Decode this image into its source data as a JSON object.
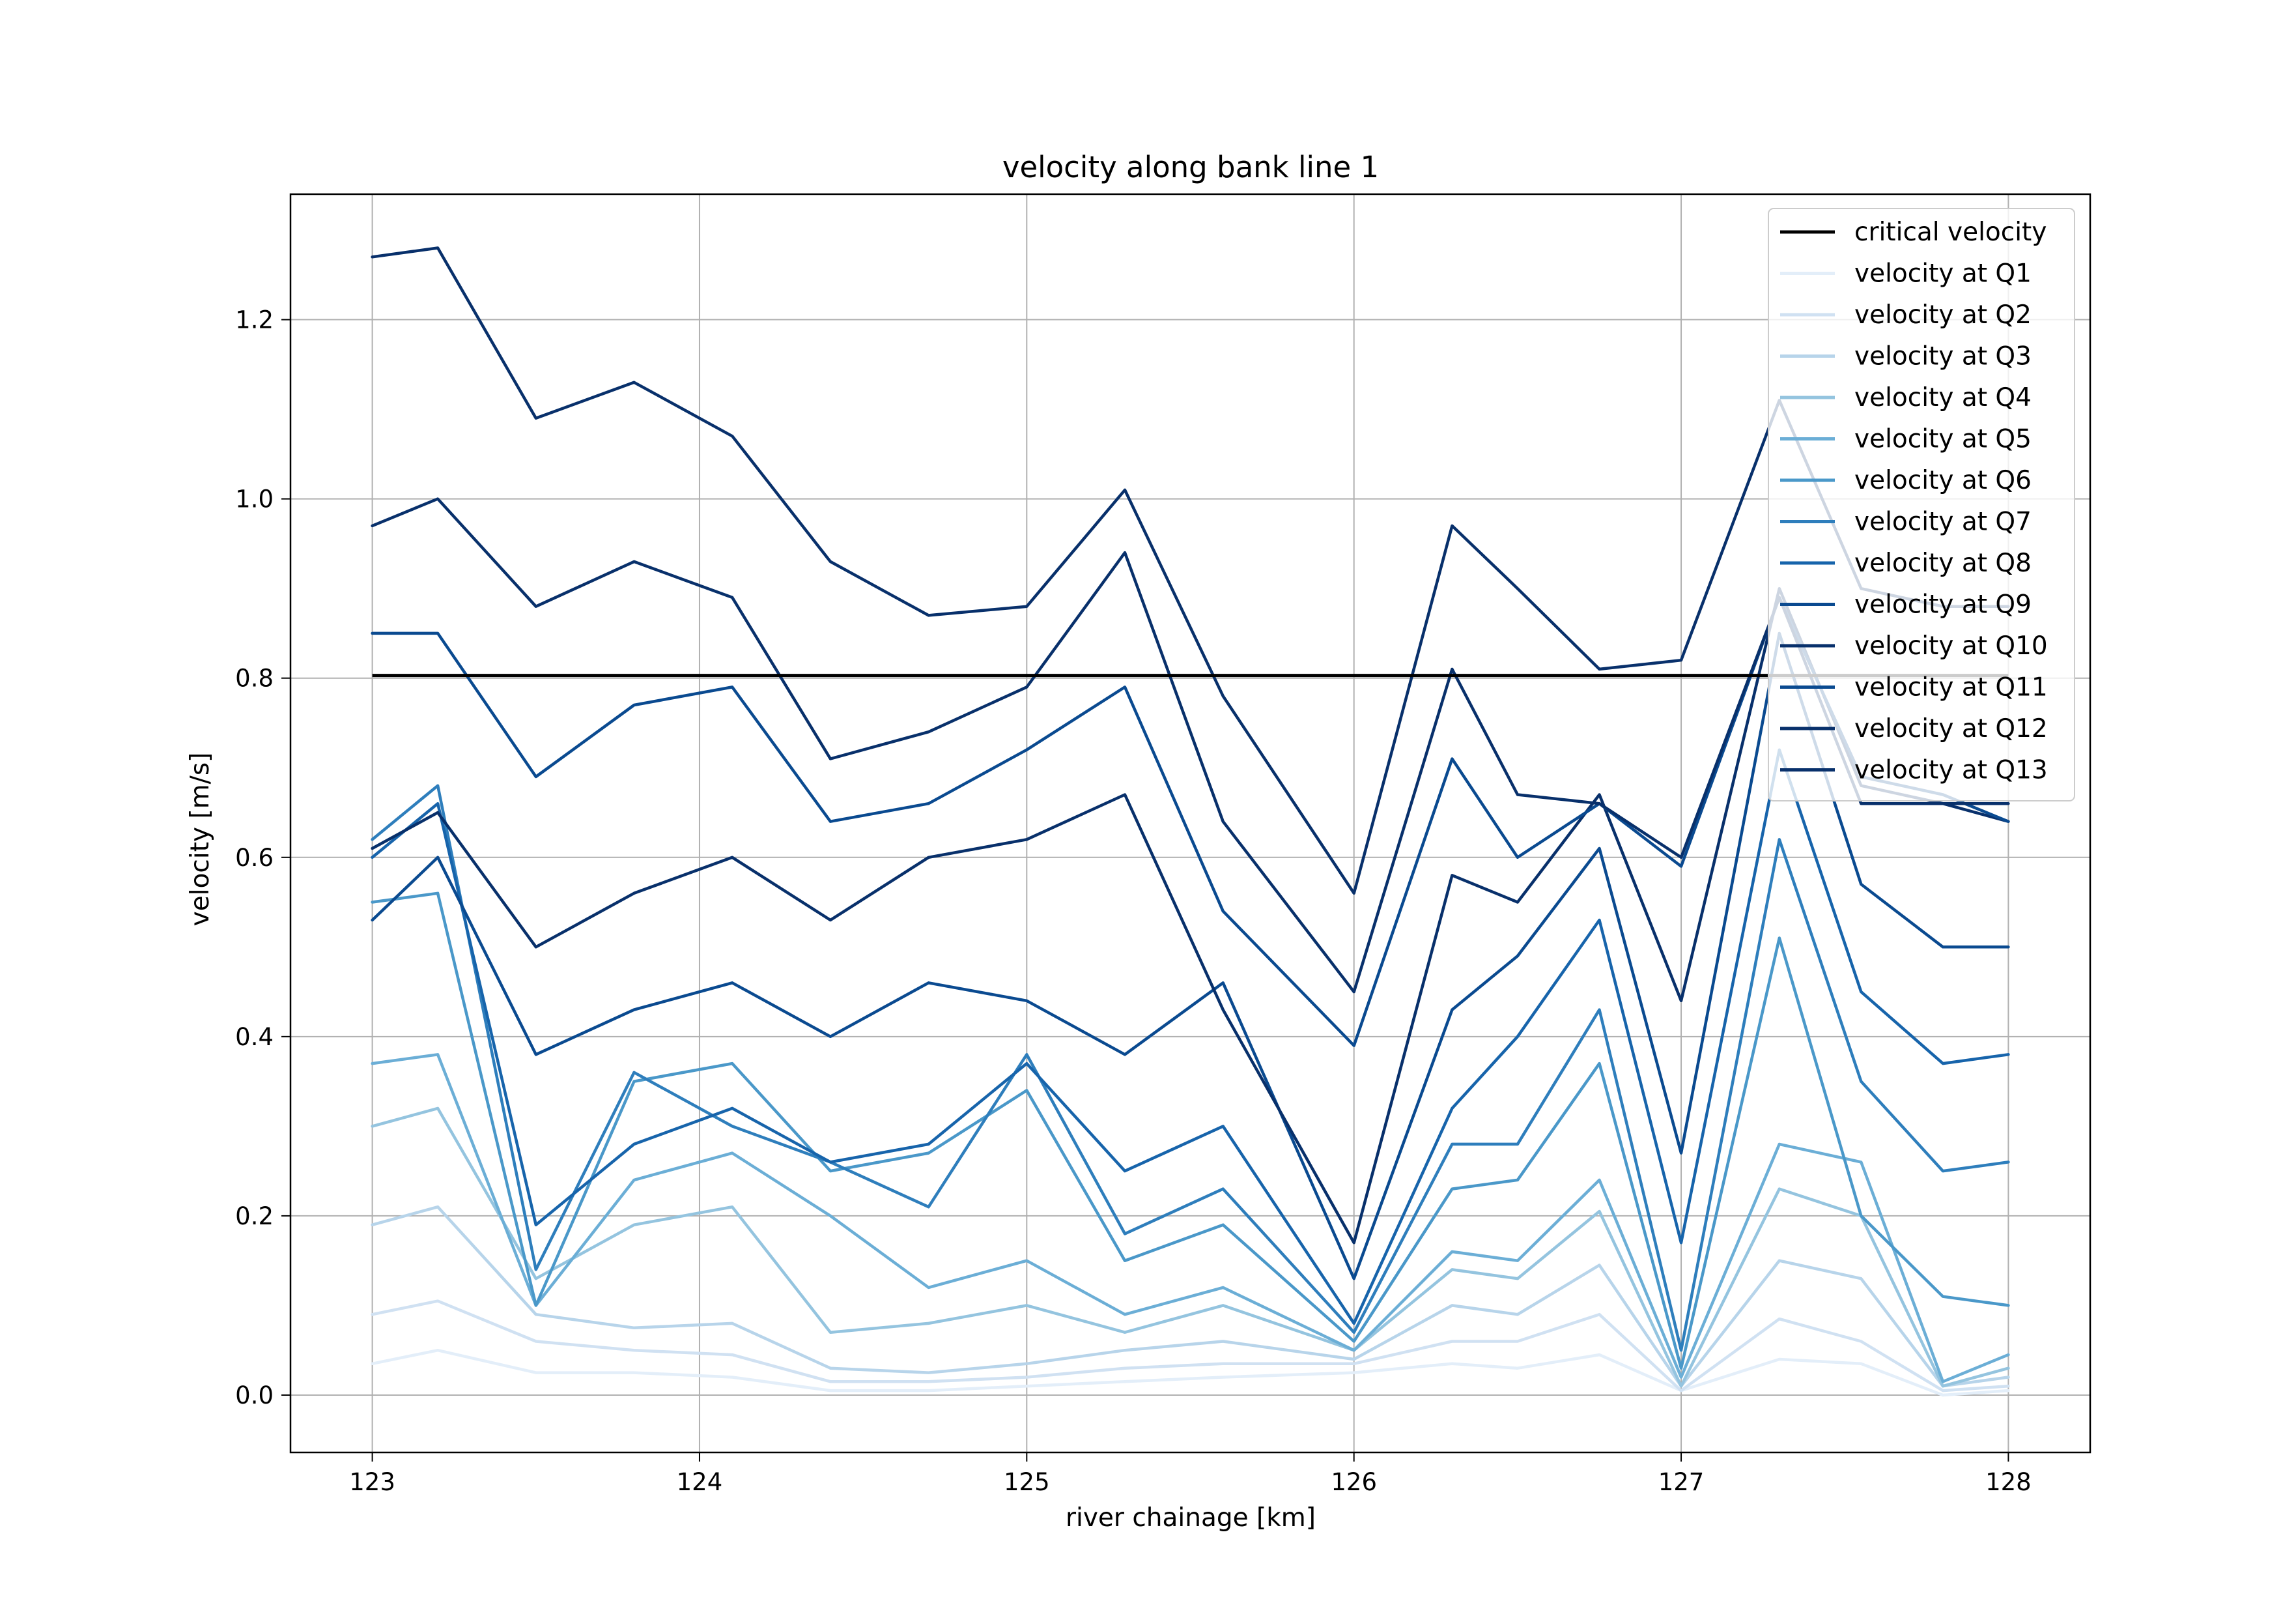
{
  "chart_data": {
    "type": "line",
    "title": "velocity along bank line 1",
    "xlabel": "river chainage [km]",
    "ylabel": "velocity [m/s]",
    "xlim": [
      122.75,
      128.25
    ],
    "ylim": [
      -0.064,
      1.34
    ],
    "xticks": [
      123,
      124,
      125,
      126,
      127,
      128
    ],
    "xtick_labels": [
      "123",
      "124",
      "125",
      "126",
      "127",
      "128"
    ],
    "yticks": [
      0.0,
      0.2,
      0.4,
      0.6,
      0.8,
      1.0,
      1.2
    ],
    "ytick_labels": [
      "0.0",
      "0.2",
      "0.4",
      "0.6",
      "0.8",
      "1.0",
      "1.2"
    ],
    "grid": true,
    "legend_position": "top-right",
    "critical_velocity": {
      "name": "critical velocity",
      "color": "#000000",
      "x": [
        123,
        128
      ],
      "y": [
        0.803,
        0.803
      ]
    },
    "series": [
      {
        "name": "velocity at Q1",
        "color": "#e3eef9",
        "x": [
          123,
          123.2,
          123.5,
          123.8,
          124.1,
          124.4,
          124.7,
          125.0,
          125.3,
          125.6,
          126.0,
          126.3,
          126.5,
          126.75,
          127.0,
          127.3,
          127.55,
          127.8,
          128
        ],
        "y": [
          0.035,
          0.05,
          0.025,
          0.025,
          0.02,
          0.005,
          0.005,
          0.01,
          0.015,
          0.02,
          0.025,
          0.035,
          0.03,
          0.045,
          0.005,
          0.04,
          0.035,
          0.0,
          0.005
        ]
      },
      {
        "name": "velocity at Q2",
        "color": "#d0e1f2",
        "x": [
          123,
          123.2,
          123.5,
          123.8,
          124.1,
          124.4,
          124.7,
          125.0,
          125.3,
          125.6,
          126.0,
          126.3,
          126.5,
          126.75,
          127.0,
          127.3,
          127.55,
          127.8,
          128
        ],
        "y": [
          0.09,
          0.105,
          0.06,
          0.05,
          0.045,
          0.015,
          0.015,
          0.02,
          0.03,
          0.035,
          0.035,
          0.06,
          0.06,
          0.09,
          0.005,
          0.085,
          0.06,
          0.005,
          0.01
        ]
      },
      {
        "name": "velocity at Q3",
        "color": "#b7d4ea",
        "x": [
          123,
          123.2,
          123.5,
          123.8,
          124.1,
          124.4,
          124.7,
          125.0,
          125.3,
          125.6,
          126.0,
          126.3,
          126.5,
          126.75,
          127.0,
          127.3,
          127.55,
          127.8,
          128
        ],
        "y": [
          0.19,
          0.21,
          0.09,
          0.075,
          0.08,
          0.03,
          0.025,
          0.035,
          0.05,
          0.06,
          0.04,
          0.1,
          0.09,
          0.145,
          0.01,
          0.15,
          0.13,
          0.01,
          0.02
        ]
      },
      {
        "name": "velocity at Q4",
        "color": "#94c4df",
        "x": [
          123,
          123.2,
          123.5,
          123.8,
          124.1,
          124.4,
          124.7,
          125.0,
          125.3,
          125.6,
          126.0,
          126.3,
          126.5,
          126.75,
          127.0,
          127.3,
          127.55,
          127.8,
          128
        ],
        "y": [
          0.3,
          0.32,
          0.13,
          0.19,
          0.21,
          0.07,
          0.08,
          0.1,
          0.07,
          0.1,
          0.05,
          0.14,
          0.13,
          0.205,
          0.01,
          0.23,
          0.2,
          0.01,
          0.03
        ]
      },
      {
        "name": "velocity at Q5",
        "color": "#6baed6",
        "x": [
          123,
          123.2,
          123.5,
          123.8,
          124.1,
          124.4,
          124.7,
          125.0,
          125.3,
          125.6,
          126.0,
          126.3,
          126.5,
          126.75,
          127.0,
          127.3,
          127.55,
          127.8,
          128
        ],
        "y": [
          0.37,
          0.38,
          0.1,
          0.24,
          0.27,
          0.2,
          0.12,
          0.15,
          0.09,
          0.12,
          0.05,
          0.16,
          0.15,
          0.24,
          0.02,
          0.28,
          0.26,
          0.015,
          0.045
        ]
      },
      {
        "name": "velocity at Q6",
        "color": "#4a98c9",
        "x": [
          123,
          123.2,
          123.5,
          123.8,
          124.1,
          124.4,
          124.7,
          125.0,
          125.3,
          125.6,
          126.0,
          126.3,
          126.5,
          126.75,
          127.0,
          127.3,
          127.55,
          127.8,
          128
        ],
        "y": [
          0.55,
          0.56,
          0.1,
          0.35,
          0.37,
          0.25,
          0.27,
          0.34,
          0.15,
          0.19,
          0.06,
          0.23,
          0.24,
          0.37,
          0.03,
          0.51,
          0.2,
          0.11,
          0.1
        ]
      },
      {
        "name": "velocity at Q7",
        "color": "#2e7ebc",
        "x": [
          123,
          123.2,
          123.5,
          123.8,
          124.1,
          124.4,
          124.7,
          125.0,
          125.3,
          125.6,
          126.0,
          126.3,
          126.5,
          126.75,
          127.0,
          127.3,
          127.55,
          127.8,
          128
        ],
        "y": [
          0.62,
          0.68,
          0.14,
          0.36,
          0.3,
          0.26,
          0.21,
          0.38,
          0.18,
          0.23,
          0.07,
          0.28,
          0.28,
          0.43,
          0.05,
          0.62,
          0.35,
          0.25,
          0.26
        ]
      },
      {
        "name": "velocity at Q8",
        "color": "#1764ab",
        "x": [
          123,
          123.2,
          123.5,
          123.8,
          124.1,
          124.4,
          124.7,
          125.0,
          125.3,
          125.6,
          126.0,
          126.3,
          126.5,
          126.75,
          127.0,
          127.3,
          127.55,
          127.8,
          128
        ],
        "y": [
          0.6,
          0.66,
          0.19,
          0.28,
          0.32,
          0.26,
          0.28,
          0.37,
          0.25,
          0.3,
          0.08,
          0.32,
          0.4,
          0.53,
          0.17,
          0.72,
          0.45,
          0.37,
          0.38
        ]
      },
      {
        "name": "velocity at Q9",
        "color": "#0a4a90",
        "x": [
          123,
          123.2,
          123.5,
          123.8,
          124.1,
          124.4,
          124.7,
          125.0,
          125.3,
          125.6,
          126.0,
          126.3,
          126.5,
          126.75,
          127.0,
          127.3,
          127.55,
          127.8,
          128
        ],
        "y": [
          0.53,
          0.6,
          0.38,
          0.43,
          0.46,
          0.4,
          0.46,
          0.44,
          0.38,
          0.46,
          0.13,
          0.43,
          0.49,
          0.61,
          0.27,
          0.85,
          0.57,
          0.5,
          0.5
        ]
      },
      {
        "name": "velocity at Q10",
        "color": "#08306b",
        "x": [
          123,
          123.2,
          123.5,
          123.8,
          124.1,
          124.4,
          124.7,
          125.0,
          125.3,
          125.6,
          126.0,
          126.3,
          126.5,
          126.75,
          127.0,
          127.3,
          127.55,
          127.8,
          128
        ],
        "y": [
          0.61,
          0.65,
          0.5,
          0.56,
          0.6,
          0.53,
          0.6,
          0.62,
          0.67,
          0.43,
          0.17,
          0.58,
          0.55,
          0.67,
          0.44,
          0.9,
          0.68,
          0.66,
          0.64
        ]
      },
      {
        "name": "velocity at Q11",
        "color": "#0a4a90",
        "x": [
          123,
          123.2,
          123.5,
          123.8,
          124.1,
          124.4,
          124.7,
          125.0,
          125.3,
          125.6,
          126.0,
          126.3,
          126.5,
          126.75,
          127.0,
          127.3,
          127.55,
          127.8,
          128
        ],
        "y": [
          0.85,
          0.85,
          0.69,
          0.77,
          0.79,
          0.64,
          0.66,
          0.72,
          0.79,
          0.54,
          0.39,
          0.71,
          0.6,
          0.66,
          0.59,
          0.89,
          0.69,
          0.67,
          0.64
        ]
      },
      {
        "name": "velocity at Q12",
        "color": "#08306b",
        "x": [
          123,
          123.2,
          123.5,
          123.8,
          124.1,
          124.4,
          124.7,
          125.0,
          125.3,
          125.6,
          126.0,
          126.3,
          126.5,
          126.75,
          127.0,
          127.3,
          127.55,
          127.8,
          128
        ],
        "y": [
          0.97,
          1.0,
          0.88,
          0.93,
          0.89,
          0.71,
          0.74,
          0.79,
          0.94,
          0.64,
          0.45,
          0.81,
          0.67,
          0.66,
          0.6,
          0.89,
          0.66,
          0.66,
          0.66
        ]
      },
      {
        "name": "velocity at Q13",
        "color": "#08306b",
        "x": [
          123,
          123.2,
          123.5,
          123.8,
          124.1,
          124.4,
          124.7,
          125.0,
          125.3,
          125.6,
          126.0,
          126.3,
          126.5,
          126.75,
          127.0,
          127.3,
          127.55,
          127.8,
          128
        ],
        "y": [
          1.27,
          1.28,
          1.09,
          1.13,
          1.07,
          0.93,
          0.87,
          0.88,
          1.01,
          0.78,
          0.56,
          0.97,
          0.9,
          0.81,
          0.82,
          1.11,
          0.9,
          0.88,
          0.88
        ]
      }
    ]
  }
}
